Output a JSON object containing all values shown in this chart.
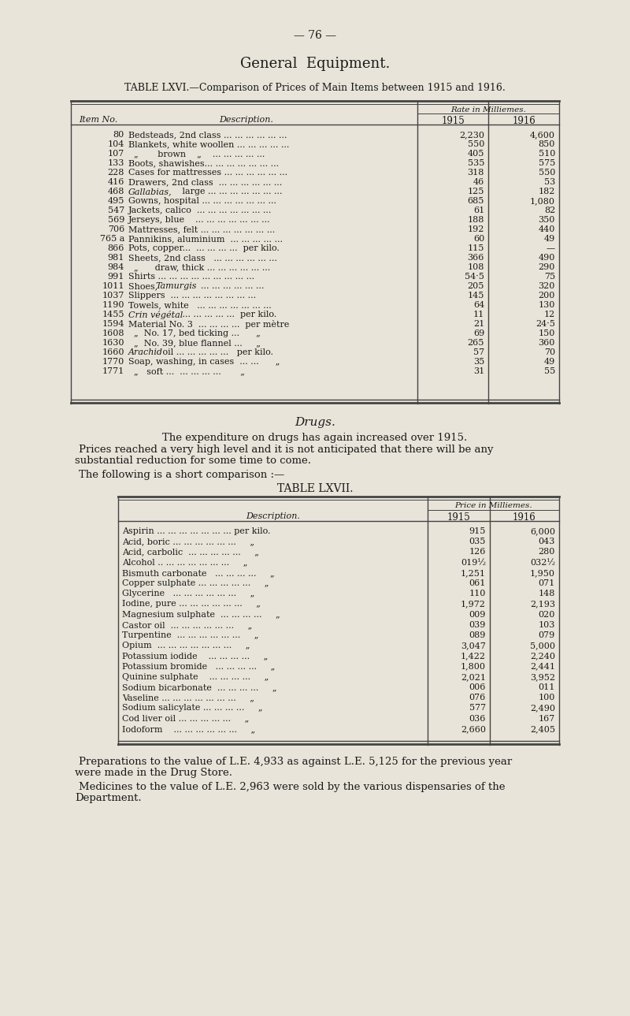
{
  "bg_color": "#e8e4d9",
  "text_color": "#1a1a1a",
  "page_number": "— 76 —",
  "main_title": "General  Equipment.",
  "table1_title": "TABLE LXVI.—Comparison of Prices of Main Items between 1915 and 1916.",
  "table1_rows": [
    [
      "80",
      "Bedsteads, 2nd class ... ... ... ... ... ...",
      "2,230",
      "4,600"
    ],
    [
      "104",
      "Blankets, white woollen ... ... ... ... ...",
      "550",
      "850"
    ],
    [
      "107",
      "  „       brown    „    ... ... ... ... ...",
      "405",
      "510"
    ],
    [
      "133",
      "Boots, shawishes... ... ... ... ... ... ...",
      "535",
      "575"
    ],
    [
      "228",
      "Cases for mattresses ... ... ... ... ... ...",
      "318",
      "550"
    ],
    [
      "416",
      "Drawers, 2nd class  ... ... ... ... ... ...",
      "46",
      "53"
    ],
    [
      "468",
      "Gallabias, large ... ... ... ... ... ... ...",
      "125",
      "182"
    ],
    [
      "495",
      "Gowns, hospital ... ... ... ... ... ... ...",
      "685",
      "1,080"
    ],
    [
      "547",
      "Jackets, calico  ... ... ... ... ... ... ...",
      "61",
      "82"
    ],
    [
      "569",
      "Jerseys, blue    ... ... ... ... ... ... ...",
      "188",
      "350"
    ],
    [
      "706",
      "Mattresses, felt ... ... ... ... ... ... ...",
      "192",
      "440"
    ],
    [
      "765 a",
      "Pannikins, aluminium  ... ... ... ... ...",
      "60",
      "49"
    ],
    [
      "866",
      "Pots, copper...  ... ... ... ...  per kilo.",
      "115",
      "—"
    ],
    [
      "981",
      "Sheets, 2nd class   ... ... ... ... ... ...",
      "366",
      "490"
    ],
    [
      "984",
      "  „      draw, thick ... ... ... ... ... ...",
      "108",
      "290"
    ],
    [
      "991",
      "Shirts ... ... ... ... ... ... ... ... ...",
      "54·5",
      "75"
    ],
    [
      "1011",
      "Shoes, Tamurgis  ... ... ... ... ... ...",
      "205",
      "320"
    ],
    [
      "1037",
      "Slippers  ... ... ... ... ... ... ... ...",
      "145",
      "200"
    ],
    [
      "1190",
      "Towels, white   ... ... ... ... ... ... ...",
      "64",
      "130"
    ],
    [
      "1455",
      "Crin végétal ... ... ... ... ...  per kilo.",
      "11",
      "12"
    ],
    [
      "1594",
      "Material No. 3  ... ... ... ...  per mètre",
      "21",
      "24·5"
    ],
    [
      "1608",
      "  „  No. 17, bed ticking ...      „",
      "69",
      "150"
    ],
    [
      "1630",
      "  „  No. 39, blue flannel ...     „",
      "265",
      "360"
    ],
    [
      "1660",
      "Arachid oil ... ... ... ... ...   per kilo.",
      "57",
      "70"
    ],
    [
      "1770",
      "Soap, washing, in cases  ... ...      „",
      "35",
      "49"
    ],
    [
      "1771",
      "  „   soft ...  ... ... ... ...       „",
      "31",
      "55"
    ]
  ],
  "italic_descs": [
    "468",
    "1455",
    "1594",
    "1660"
  ],
  "drugs_title": "Drugs.",
  "drugs_p1": "The expenditure on drugs has again increased over 1915.",
  "drugs_p2a": "Prices reached a very high level and it is not anticipated that there will be any",
  "drugs_p2b": "substantial reduction for some time to come.",
  "drugs_p3": "The following is a short comparison :—",
  "table2_title": "TABLE LXVII.",
  "table2_rows": [
    [
      "Aspirin ... ... ... ... ... ... ... per kilo.",
      "915",
      "6,000"
    ],
    [
      "Acid, boric ... ... ... ... ... ...     „",
      "035",
      "043"
    ],
    [
      "Acid, carbolic  ... ... ... ... ...     „",
      "126",
      "280"
    ],
    [
      "Alcohol .. ... ... ... ... ... ...     „",
      "019½",
      "032½"
    ],
    [
      "Bismuth carbonate   ... ... ... ...     „",
      "1,251",
      "1,950"
    ],
    [
      "Copper sulphate ... ... ... ... ...     „",
      "061",
      "071"
    ],
    [
      "Glycerine   ... ... ... ... ... ...     „",
      "110",
      "148"
    ],
    [
      "Iodine, pure ... ... ... ... ... ...     „",
      "1,972",
      "2,193"
    ],
    [
      "Magnesium sulphate  ... ... ... ...     „",
      "009",
      "020"
    ],
    [
      "Castor oil  ... ... ... ... ... ...     „",
      "039",
      "103"
    ],
    [
      "Turpentine  ... ... ... ... ... ...     „",
      "089",
      "079"
    ],
    [
      "Opium  ... ... ... ... ... ... ...     „",
      "3,047",
      "5,000"
    ],
    [
      "Potassium iodide    ... ... ... ...     „",
      "1,422",
      "2,240"
    ],
    [
      "Potassium bromide   ... ... ... ...     „",
      "1,800",
      "2,441"
    ],
    [
      "Quinine sulphate    ... ... ... ...     „",
      "2,021",
      "3,952"
    ],
    [
      "Sodium bicarbonate  ... ... ... ...     „",
      "006",
      "011"
    ],
    [
      "Vaseline ... ... ... ... ... ... ...     „",
      "076",
      "100"
    ],
    [
      "Sodium salicylate ... ... ... ...     „",
      "577",
      "2,490"
    ],
    [
      "Cod liver oil ... ... ... ... ...     „",
      "036",
      "167"
    ],
    [
      "Iodoform    ... ... ... ... ... ...     „",
      "2,660",
      "2,405"
    ]
  ],
  "close_p1a": "Preparations to the value of L.E. 4,933 as against L.E. 5,125 for the previous year",
  "close_p1b": "were made in the Drug Store.",
  "close_p2a": "Medicines to the value of L.E. 2,963 were sold by the various dispensaries of the",
  "close_p2b": "Department."
}
